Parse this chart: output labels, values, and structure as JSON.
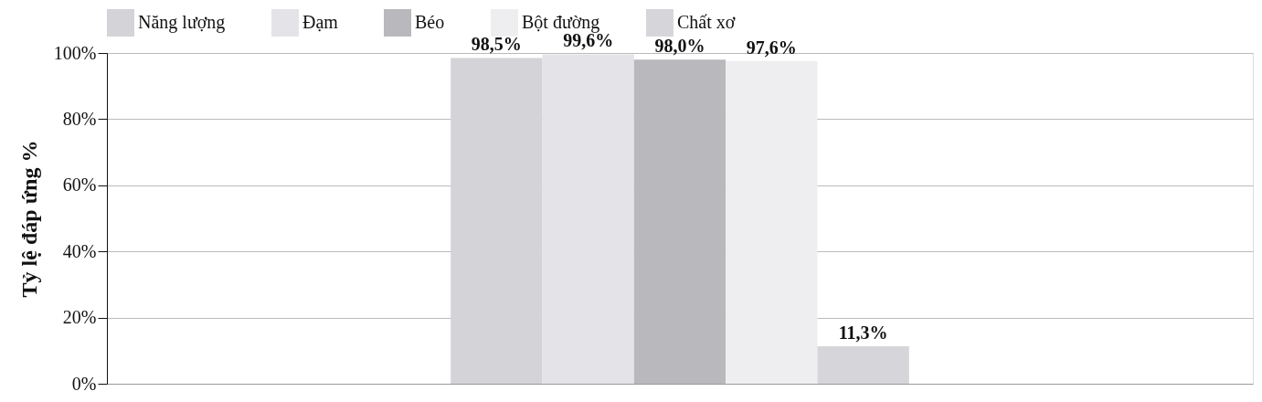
{
  "chart_data": {
    "type": "bar",
    "ylabel": "Tỷ lệ đáp ứng %",
    "categories": [
      null
    ],
    "series": [
      {
        "name": "Năng lượng",
        "color": "#d3d3d8",
        "values": [
          98.5
        ],
        "value_labels": [
          "98,5%"
        ]
      },
      {
        "name": "Đạm",
        "color": "#e4e4e8",
        "values": [
          99.6
        ],
        "value_labels": [
          "99,6%"
        ]
      },
      {
        "name": "Béo",
        "color": "#b9b9bd",
        "values": [
          98.0
        ],
        "value_labels": [
          "98,0%"
        ]
      },
      {
        "name": "Bột đường",
        "color": "#eeeef0",
        "values": [
          97.6
        ],
        "value_labels": [
          "97,6%"
        ]
      },
      {
        "name": "Chất xơ",
        "color": "#d6d6da",
        "values": [
          11.3
        ],
        "value_labels": [
          "11,3%"
        ]
      }
    ],
    "ylim": [
      0,
      100
    ],
    "yticks": [
      {
        "value": 0,
        "label": "0%"
      },
      {
        "value": 20,
        "label": "20%"
      },
      {
        "value": 40,
        "label": "40%"
      },
      {
        "value": 60,
        "label": "60%"
      },
      {
        "value": 80,
        "label": "80%"
      },
      {
        "value": 100,
        "label": "100%"
      }
    ],
    "grid": "y",
    "legend": "top"
  }
}
